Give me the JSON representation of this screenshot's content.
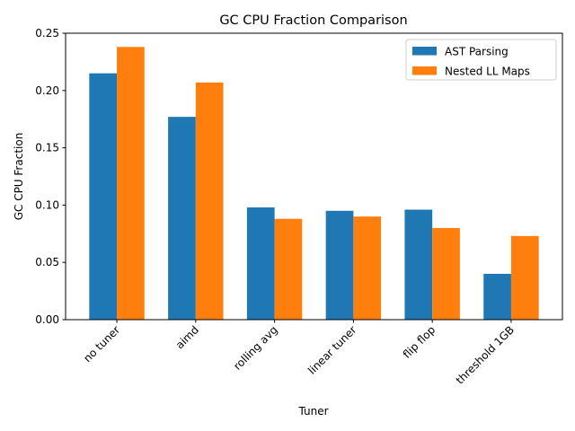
{
  "chart_data": {
    "type": "bar",
    "title": "GC CPU Fraction Comparison",
    "xlabel": "Tuner",
    "ylabel": "GC CPU Fraction",
    "categories": [
      "no tuner",
      "aimd",
      "rolling avg",
      "linear tuner",
      "flip flop",
      "threshold 1GB"
    ],
    "series": [
      {
        "name": "AST Parsing",
        "color": "#1f77b4",
        "values": [
          0.215,
          0.177,
          0.098,
          0.095,
          0.096,
          0.04
        ]
      },
      {
        "name": "Nested LL Maps",
        "color": "#ff7f0e",
        "values": [
          0.238,
          0.207,
          0.088,
          0.09,
          0.08,
          0.073
        ]
      }
    ],
    "ylim": [
      0,
      0.25
    ],
    "yticks": [
      "0.00",
      "0.05",
      "0.10",
      "0.15",
      "0.20",
      "0.25"
    ],
    "grid": false,
    "legend_position": "top-right",
    "xtick_rotation": 45
  }
}
